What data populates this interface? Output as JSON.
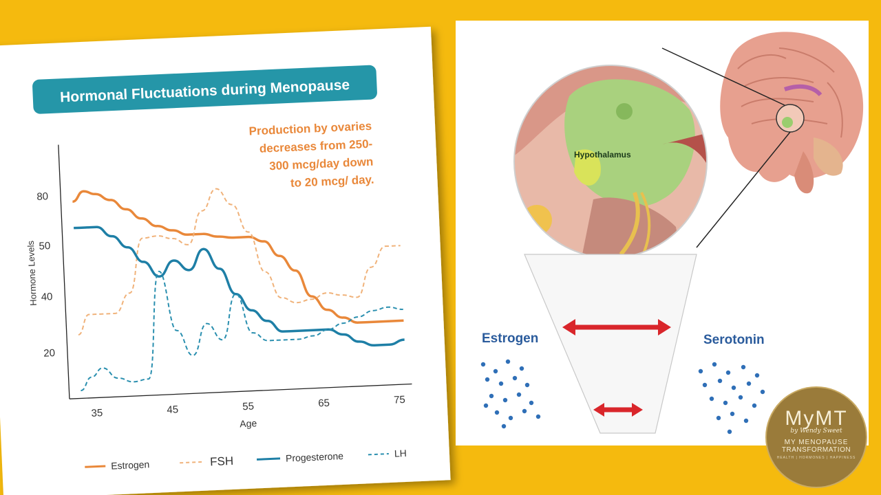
{
  "chart_data": {
    "type": "line",
    "title": "Hormonal Fluctuations during Menopause",
    "annotation": [
      "Production by ovaries",
      "decreases from 250-",
      "300 mcg/day down",
      "to 20 mcg/ day."
    ],
    "xlabel": "Age",
    "ylabel": "Hormone Levels",
    "x_ticks": [
      "35",
      "45",
      "55",
      "65",
      "75"
    ],
    "y_ticks": [
      "20",
      "40",
      "50",
      "80"
    ],
    "xlim": [
      33,
      78
    ],
    "legend_position": "bottom",
    "series": [
      {
        "name": "Estrogen",
        "style": "solid",
        "color": "#E9883A",
        "x": [
          33,
          34.5,
          36,
          38,
          40,
          42,
          44,
          46,
          48,
          50,
          52,
          54,
          56,
          58,
          60,
          62,
          64,
          66,
          68,
          70,
          72,
          74,
          76
        ],
        "y": [
          76,
          82,
          80,
          76,
          70,
          64,
          59,
          56,
          53,
          53,
          51,
          50,
          50,
          49,
          46,
          43,
          36,
          31,
          28,
          26,
          26,
          26,
          26
        ]
      },
      {
        "name": "FSH",
        "style": "dashed",
        "color": "#F0B27A",
        "x": [
          33,
          34.5,
          36,
          38,
          40,
          42,
          44,
          46,
          48,
          50,
          52,
          54,
          56,
          58,
          60,
          62,
          64,
          66,
          68,
          70,
          72,
          74,
          76
        ],
        "y": [
          26,
          33,
          33,
          33,
          40,
          52,
          53,
          51,
          49,
          67,
          80,
          70,
          53,
          43,
          36,
          34,
          35,
          37,
          36,
          35,
          43,
          47,
          47
        ]
      },
      {
        "name": "Progesterone",
        "style": "solid",
        "color": "#1E7FA6",
        "x": [
          33,
          34.5,
          36,
          38,
          40,
          42,
          44,
          46,
          48,
          50,
          52,
          54,
          56,
          58,
          60,
          62,
          64,
          66,
          68,
          70,
          72,
          74,
          76
        ],
        "y": [
          60,
          60,
          60,
          54,
          49,
          46,
          43,
          46,
          44,
          48,
          44,
          38,
          32,
          28,
          24,
          24,
          24,
          24,
          22,
          19,
          17,
          17,
          19
        ]
      },
      {
        "name": "LH",
        "style": "dashed",
        "color": "#2A8FAF",
        "x": [
          33,
          34.5,
          36,
          38,
          40,
          42,
          44,
          46,
          48,
          50,
          52,
          54,
          56,
          58,
          60,
          62,
          64,
          66,
          68,
          70,
          72,
          74,
          76
        ],
        "y": [
          2,
          8,
          12,
          7,
          5,
          6,
          44,
          26,
          16,
          28,
          22,
          38,
          24,
          21,
          21,
          21,
          22,
          24,
          26,
          28,
          30,
          31,
          30
        ]
      }
    ]
  },
  "diagram": {
    "structure_label": "Hypothalamus",
    "left_label": "Estrogen",
    "right_label": "Serotonin"
  },
  "logo": {
    "big": "MyMT",
    "by": "by Wendy Sweet",
    "line1": "MY MENOPAUSE",
    "line2": "TRANSFORMATION",
    "tagline": "HEALTH | HORMONES | HAPPINESS"
  },
  "colors": {
    "background": "#F5BA0E",
    "title_banner": "#2596A8",
    "annotation": "#E9883A",
    "arrow": "#D9262B",
    "dots": "#2F6FB7"
  }
}
